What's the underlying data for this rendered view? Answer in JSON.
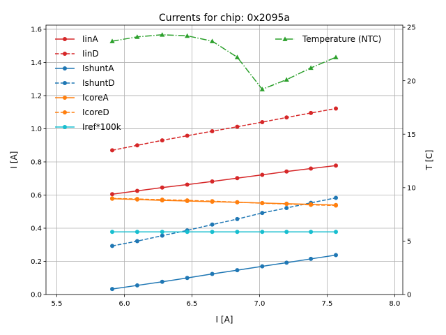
{
  "chart_data": {
    "type": "line",
    "title": "Currents for chip: 0x2095a",
    "xlabel": "I [A]",
    "ylabel": "I [A]",
    "y2label": "T [C]",
    "xlim": [
      5.42,
      8.06
    ],
    "ylim": [
      0,
      1.625
    ],
    "y2lim": [
      0,
      25.2
    ],
    "grid": true,
    "legend_left_position": "top-left",
    "legend_right_position": "top-right",
    "x": [
      5.91,
      6.095,
      6.28,
      6.465,
      6.65,
      6.835,
      7.02,
      7.2,
      7.38,
      7.565
    ],
    "xticks": [
      5.5,
      6.0,
      6.5,
      7.0,
      7.5,
      8.0
    ],
    "xtick_labels": [
      "5.5",
      "6.0",
      "6.5",
      "7.0",
      "7.5",
      "8.0"
    ],
    "yticks": [
      0.0,
      0.2,
      0.4,
      0.6,
      0.8,
      1.0,
      1.2,
      1.4,
      1.6
    ],
    "ytick_labels": [
      "0.0",
      "0.2",
      "0.4",
      "0.6",
      "0.8",
      "1.0",
      "1.2",
      "1.4",
      "1.6"
    ],
    "y2ticks": [
      0,
      5,
      10,
      15,
      20,
      25
    ],
    "y2tick_labels": [
      "0",
      "5",
      "10",
      "15",
      "20",
      "25"
    ],
    "series": [
      {
        "name": "IinA",
        "axis": "left",
        "color": "#d62728",
        "dash": "solid",
        "marker": "circle",
        "values": [
          0.605,
          0.625,
          0.645,
          0.663,
          0.682,
          0.702,
          0.722,
          0.742,
          0.76,
          0.778
        ]
      },
      {
        "name": "IinD",
        "axis": "left",
        "color": "#d62728",
        "dash": "dashed",
        "marker": "circle",
        "values": [
          0.87,
          0.9,
          0.93,
          0.958,
          0.985,
          1.012,
          1.04,
          1.068,
          1.095,
          1.122
        ]
      },
      {
        "name": "IshuntA",
        "axis": "left",
        "color": "#1f77b4",
        "dash": "solid",
        "marker": "circle",
        "values": [
          0.033,
          0.055,
          0.077,
          0.1,
          0.124,
          0.147,
          0.17,
          0.192,
          0.215,
          0.238
        ]
      },
      {
        "name": "IshuntD",
        "axis": "left",
        "color": "#1f77b4",
        "dash": "dashed",
        "marker": "circle",
        "values": [
          0.293,
          0.322,
          0.355,
          0.387,
          0.422,
          0.455,
          0.492,
          0.522,
          0.553,
          0.583
        ]
      },
      {
        "name": "IcoreA",
        "axis": "left",
        "color": "#ff7f0e",
        "dash": "solid",
        "marker": "circle",
        "values": [
          0.578,
          0.573,
          0.568,
          0.564,
          0.56,
          0.556,
          0.552,
          0.548,
          0.544,
          0.54
        ]
      },
      {
        "name": "IcoreD",
        "axis": "left",
        "color": "#ff7f0e",
        "dash": "dashed",
        "marker": "circle",
        "values": [
          0.58,
          0.576,
          0.572,
          0.568,
          0.563,
          0.557,
          0.551,
          0.546,
          0.541,
          0.537
        ]
      },
      {
        "name": "Iref*100k",
        "axis": "left",
        "color": "#17becf",
        "dash": "solid",
        "marker": "circle",
        "values": [
          0.378,
          0.378,
          0.378,
          0.378,
          0.378,
          0.378,
          0.378,
          0.378,
          0.378,
          0.378
        ]
      },
      {
        "name": "Temperature (NTC)",
        "axis": "right",
        "color": "#2ca02c",
        "dash": "dashdot",
        "marker": "triangle",
        "values": [
          23.7,
          24.1,
          24.3,
          24.2,
          23.7,
          22.2,
          19.2,
          20.1,
          21.2,
          22.2
        ]
      }
    ]
  }
}
